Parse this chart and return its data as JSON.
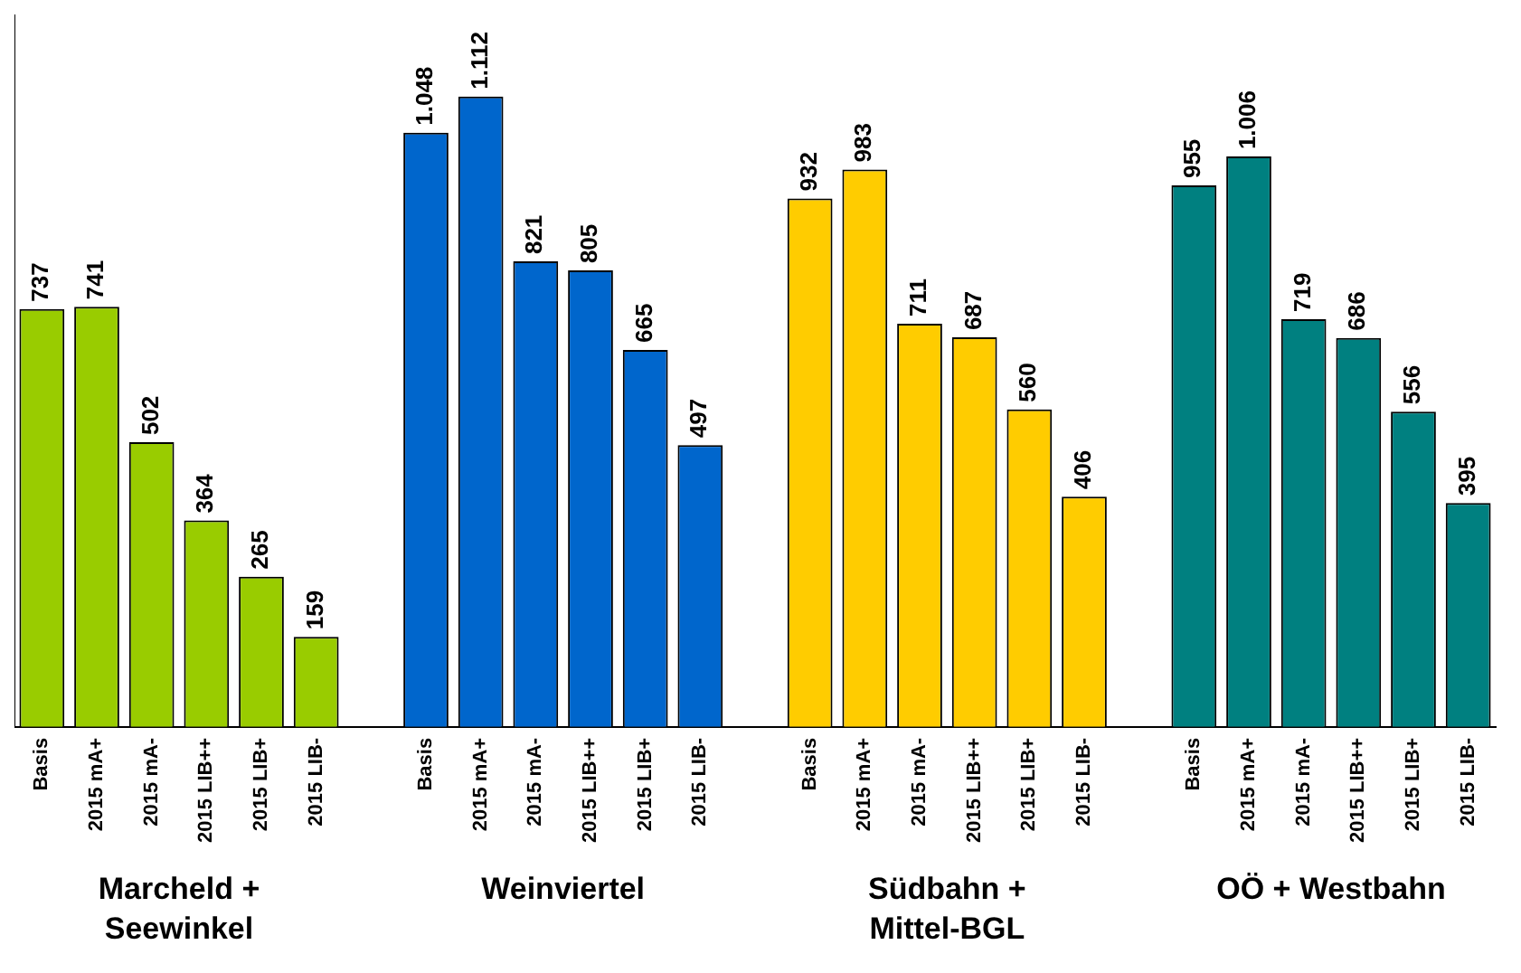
{
  "chart_data": {
    "type": "bar",
    "categories": [
      "Basis",
      "2015 mA+",
      "2015 mA-",
      "2015 LIB++",
      "2015 LIB+",
      "2015 LIB-",
      null,
      "Basis",
      "2015 mA+",
      "2015 mA-",
      "2015 LIB++",
      "2015 LIB+",
      "2015 LIB-",
      null,
      "Basis",
      "2015 mA+",
      "2015 mA-",
      "2015 LIB++",
      "2015 LIB+",
      "2015 LIB-",
      null,
      "Basis",
      "2015 mA+",
      "2015 mA-",
      "2015 LIB++",
      "2015 LIB+",
      "2015 LIB-"
    ],
    "values": [
      737,
      741,
      502,
      364,
      265,
      159,
      null,
      1048,
      1112,
      821,
      805,
      665,
      497,
      null,
      932,
      983,
      711,
      687,
      560,
      406,
      null,
      955,
      1006,
      719,
      686,
      556,
      395
    ],
    "value_labels": [
      "737",
      "741",
      "502",
      "364",
      "265",
      "159",
      null,
      "1.048",
      "1.112",
      "821",
      "805",
      "665",
      "497",
      null,
      "932",
      "983",
      "711",
      "687",
      "560",
      "406",
      null,
      "955",
      "1.006",
      "719",
      "686",
      "556",
      "395"
    ],
    "colors": [
      "#99cc00",
      "#99cc00",
      "#99cc00",
      "#99cc00",
      "#99cc00",
      "#99cc00",
      null,
      "#0066cc",
      "#0066cc",
      "#0066cc",
      "#0066cc",
      "#0066cc",
      "#0066cc",
      null,
      "#ffcc00",
      "#ffcc00",
      "#ffcc00",
      "#ffcc00",
      "#ffcc00",
      "#ffcc00",
      null,
      "#008080",
      "#008080",
      "#008080",
      "#008080",
      "#008080",
      "#008080"
    ],
    "annotations": [
      "Marcheld +\nSeewinkel",
      "Weinviertel",
      "Südbahn +\nMittel-BGL",
      "OÖ + Westbahn"
    ],
    "legend": false,
    "grid": false
  }
}
